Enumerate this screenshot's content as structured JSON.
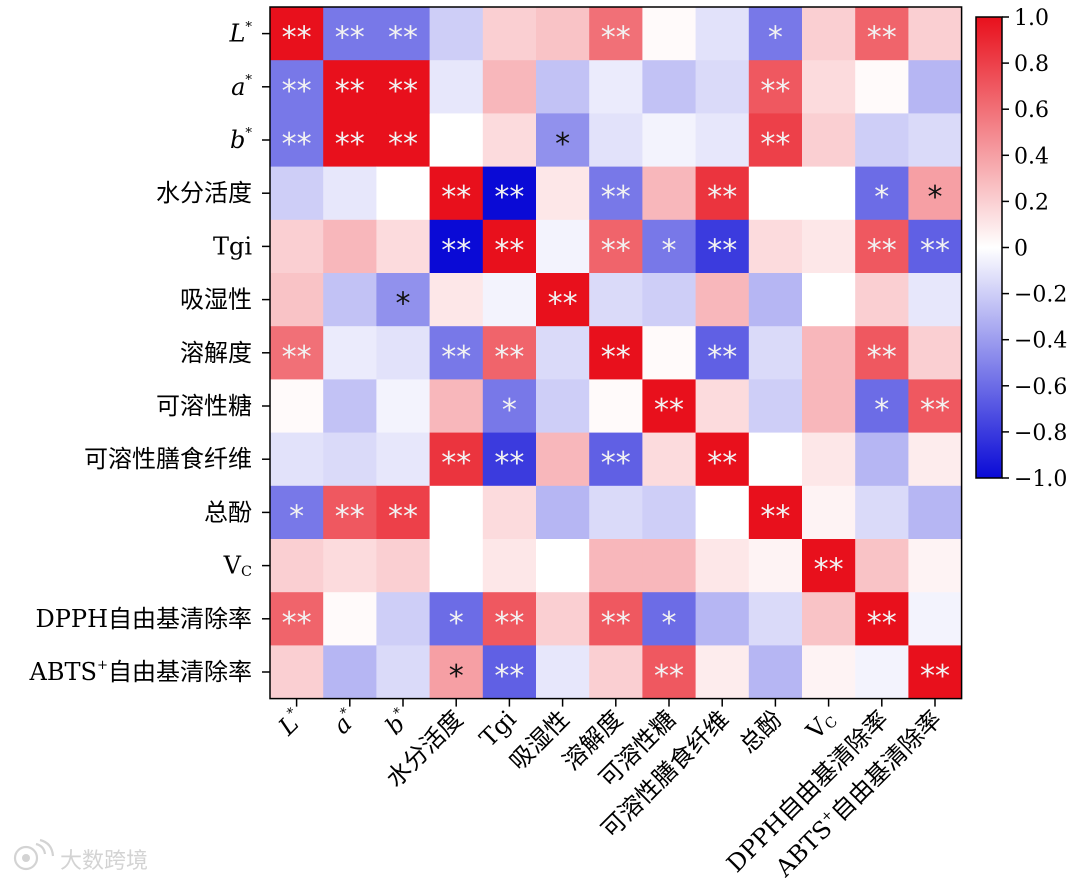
{
  "chart_data": {
    "type": "heatmap",
    "title": "",
    "variables": [
      {
        "text": "L",
        "sup": "*",
        "italic": true
      },
      {
        "text": "a",
        "sup": "*",
        "italic": true
      },
      {
        "text": "b",
        "sup": "*",
        "italic": true
      },
      {
        "text": "水分活度"
      },
      {
        "text": "Tgi"
      },
      {
        "text": "吸湿性"
      },
      {
        "text": "溶解度"
      },
      {
        "text": "可溶性糖"
      },
      {
        "text": "可溶性膳食纤维"
      },
      {
        "text": "总酚"
      },
      {
        "text": "V",
        "sub": "C"
      },
      {
        "text": "DPPH自由基清除率"
      },
      {
        "text": "ABTS",
        "sup": "+",
        "tail": "自由基清除率"
      }
    ],
    "values": [
      [
        1.0,
        -0.55,
        -0.55,
        -0.2,
        0.2,
        0.25,
        0.6,
        0.02,
        -0.12,
        -0.55,
        0.2,
        0.65,
        0.2
      ],
      [
        -0.55,
        1.0,
        1.0,
        -0.1,
        0.3,
        -0.25,
        -0.08,
        -0.25,
        -0.15,
        0.7,
        0.15,
        0.02,
        -0.3
      ],
      [
        -0.55,
        1.0,
        1.0,
        0.0,
        0.15,
        -0.45,
        -0.12,
        -0.05,
        -0.1,
        0.8,
        0.2,
        -0.2,
        -0.15
      ],
      [
        -0.2,
        -0.1,
        0.0,
        1.0,
        -1.0,
        0.1,
        -0.55,
        0.3,
        0.85,
        0.0,
        0.0,
        -0.6,
        0.4
      ],
      [
        0.2,
        0.3,
        0.15,
        -1.0,
        1.0,
        -0.05,
        0.65,
        -0.55,
        -0.8,
        0.15,
        0.1,
        0.7,
        -0.65
      ],
      [
        0.25,
        -0.25,
        -0.45,
        0.1,
        -0.05,
        1.0,
        -0.15,
        -0.2,
        0.3,
        -0.3,
        0.0,
        0.2,
        -0.1
      ],
      [
        0.6,
        -0.08,
        -0.12,
        -0.55,
        0.65,
        -0.15,
        1.0,
        0.02,
        -0.65,
        -0.15,
        0.3,
        0.7,
        0.2
      ],
      [
        0.02,
        -0.25,
        -0.05,
        0.3,
        -0.55,
        -0.2,
        0.02,
        1.0,
        0.15,
        -0.2,
        0.3,
        -0.6,
        0.7
      ],
      [
        -0.12,
        -0.15,
        -0.1,
        0.85,
        -0.8,
        0.3,
        -0.65,
        0.15,
        1.0,
        0.0,
        0.1,
        -0.3,
        0.08
      ],
      [
        -0.55,
        0.7,
        0.8,
        0.0,
        0.15,
        -0.3,
        -0.15,
        -0.2,
        0.0,
        1.0,
        0.05,
        -0.15,
        -0.3
      ],
      [
        0.2,
        0.15,
        0.2,
        0.0,
        0.1,
        0.0,
        0.3,
        0.3,
        0.1,
        0.05,
        1.0,
        0.25,
        0.05
      ],
      [
        0.65,
        0.02,
        -0.2,
        -0.6,
        0.7,
        0.2,
        0.7,
        -0.6,
        -0.3,
        -0.15,
        0.25,
        1.0,
        -0.05
      ],
      [
        0.2,
        -0.3,
        -0.15,
        0.4,
        -0.65,
        -0.1,
        0.2,
        0.7,
        0.08,
        -0.3,
        0.05,
        -0.05,
        1.0
      ]
    ],
    "significance": [
      [
        "**",
        "**",
        "**",
        "",
        "",
        "",
        "**",
        "",
        "",
        "*",
        "",
        "**",
        ""
      ],
      [
        "**",
        "**",
        "**",
        "",
        "",
        "",
        "",
        "",
        "",
        "**",
        "",
        "",
        ""
      ],
      [
        "**",
        "**",
        "**",
        "",
        "",
        "*",
        "",
        "",
        "",
        "**",
        "",
        "",
        ""
      ],
      [
        "",
        "",
        "",
        "**",
        "**",
        "",
        "**",
        "",
        "**",
        "",
        "",
        "*",
        "*"
      ],
      [
        "",
        "",
        "",
        "**",
        "**",
        "",
        "**",
        "*",
        "**",
        "",
        "",
        "**",
        "**"
      ],
      [
        "",
        "",
        "*",
        "",
        "",
        "**",
        "",
        "",
        "",
        "",
        "",
        "",
        ""
      ],
      [
        "**",
        "",
        "",
        "**",
        "**",
        "",
        "**",
        "",
        "**",
        "",
        "",
        "**",
        ""
      ],
      [
        "",
        "",
        "",
        "",
        "*",
        "",
        "",
        "**",
        "",
        "",
        "",
        "*",
        "**"
      ],
      [
        "",
        "",
        "",
        "**",
        "**",
        "",
        "**",
        "",
        "**",
        "",
        "",
        "",
        ""
      ],
      [
        "*",
        "**",
        "**",
        "",
        "",
        "",
        "",
        "",
        "",
        "**",
        "",
        "",
        ""
      ],
      [
        "",
        "",
        "",
        "",
        "",
        "",
        "",
        "",
        "",
        "",
        "**",
        "",
        ""
      ],
      [
        "**",
        "",
        "",
        "*",
        "**",
        "",
        "**",
        "*",
        "",
        "",
        "",
        "**",
        ""
      ],
      [
        "",
        "",
        "",
        "*",
        "**",
        "",
        "",
        "**",
        "",
        "",
        "",
        "",
        "**"
      ]
    ],
    "colorbar": {
      "range": [
        -1.0,
        1.0
      ],
      "ticks": [
        1.0,
        0.8,
        0.6,
        0.4,
        0.2,
        0,
        -0.2,
        -0.4,
        -0.6,
        -0.8,
        -1.0
      ],
      "tick_labels": [
        "1.0",
        "0.8",
        "0.6",
        "0.4",
        "0.2",
        "0",
        "−0.2",
        "−0.4",
        "−0.6",
        "−0.8",
        "−1.0"
      ],
      "placement": "right",
      "colors": {
        "max": "#e8101c",
        "mid": "#ffffff",
        "min": "#0a0ad6"
      }
    },
    "star_colors": {
      "on_dark": "#f2f2f2",
      "on_light": "#111111"
    },
    "grid": false,
    "xlabel": "",
    "ylabel": ""
  },
  "watermark": {
    "text": "大数跨境",
    "icon": "weibo-style-logo-icon"
  }
}
